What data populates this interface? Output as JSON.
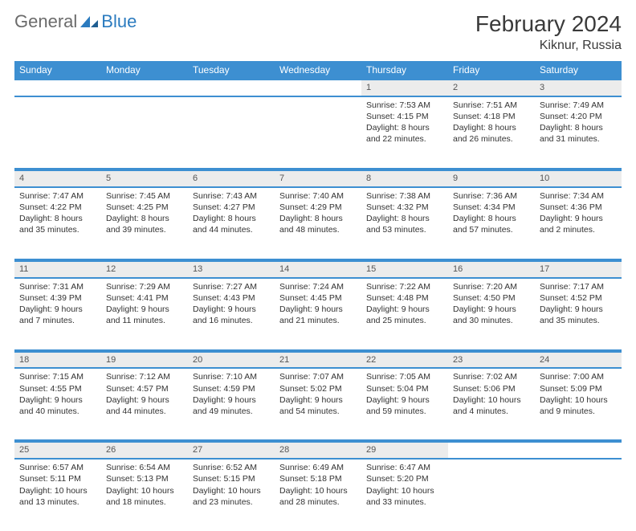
{
  "brand": {
    "general": "General",
    "blue": "Blue"
  },
  "title": "February 2024",
  "location": "Kiknur, Russia",
  "day_headers": [
    "Sunday",
    "Monday",
    "Tuesday",
    "Wednesday",
    "Thursday",
    "Friday",
    "Saturday"
  ],
  "colors": {
    "header_bg": "#3d8fd1",
    "header_text": "#ffffff",
    "daynum_bg": "#ececec",
    "rule": "#2b7bbf",
    "body_text": "#333333",
    "logo_gray": "#6b6b6b",
    "logo_blue": "#2b7bbf"
  },
  "weeks": [
    [
      null,
      null,
      null,
      null,
      {
        "n": "1",
        "sunrise": "7:53 AM",
        "sunset": "4:15 PM",
        "daylight": "8 hours and 22 minutes."
      },
      {
        "n": "2",
        "sunrise": "7:51 AM",
        "sunset": "4:18 PM",
        "daylight": "8 hours and 26 minutes."
      },
      {
        "n": "3",
        "sunrise": "7:49 AM",
        "sunset": "4:20 PM",
        "daylight": "8 hours and 31 minutes."
      }
    ],
    [
      {
        "n": "4",
        "sunrise": "7:47 AM",
        "sunset": "4:22 PM",
        "daylight": "8 hours and 35 minutes."
      },
      {
        "n": "5",
        "sunrise": "7:45 AM",
        "sunset": "4:25 PM",
        "daylight": "8 hours and 39 minutes."
      },
      {
        "n": "6",
        "sunrise": "7:43 AM",
        "sunset": "4:27 PM",
        "daylight": "8 hours and 44 minutes."
      },
      {
        "n": "7",
        "sunrise": "7:40 AM",
        "sunset": "4:29 PM",
        "daylight": "8 hours and 48 minutes."
      },
      {
        "n": "8",
        "sunrise": "7:38 AM",
        "sunset": "4:32 PM",
        "daylight": "8 hours and 53 minutes."
      },
      {
        "n": "9",
        "sunrise": "7:36 AM",
        "sunset": "4:34 PM",
        "daylight": "8 hours and 57 minutes."
      },
      {
        "n": "10",
        "sunrise": "7:34 AM",
        "sunset": "4:36 PM",
        "daylight": "9 hours and 2 minutes."
      }
    ],
    [
      {
        "n": "11",
        "sunrise": "7:31 AM",
        "sunset": "4:39 PM",
        "daylight": "9 hours and 7 minutes."
      },
      {
        "n": "12",
        "sunrise": "7:29 AM",
        "sunset": "4:41 PM",
        "daylight": "9 hours and 11 minutes."
      },
      {
        "n": "13",
        "sunrise": "7:27 AM",
        "sunset": "4:43 PM",
        "daylight": "9 hours and 16 minutes."
      },
      {
        "n": "14",
        "sunrise": "7:24 AM",
        "sunset": "4:45 PM",
        "daylight": "9 hours and 21 minutes."
      },
      {
        "n": "15",
        "sunrise": "7:22 AM",
        "sunset": "4:48 PM",
        "daylight": "9 hours and 25 minutes."
      },
      {
        "n": "16",
        "sunrise": "7:20 AM",
        "sunset": "4:50 PM",
        "daylight": "9 hours and 30 minutes."
      },
      {
        "n": "17",
        "sunrise": "7:17 AM",
        "sunset": "4:52 PM",
        "daylight": "9 hours and 35 minutes."
      }
    ],
    [
      {
        "n": "18",
        "sunrise": "7:15 AM",
        "sunset": "4:55 PM",
        "daylight": "9 hours and 40 minutes."
      },
      {
        "n": "19",
        "sunrise": "7:12 AM",
        "sunset": "4:57 PM",
        "daylight": "9 hours and 44 minutes."
      },
      {
        "n": "20",
        "sunrise": "7:10 AM",
        "sunset": "4:59 PM",
        "daylight": "9 hours and 49 minutes."
      },
      {
        "n": "21",
        "sunrise": "7:07 AM",
        "sunset": "5:02 PM",
        "daylight": "9 hours and 54 minutes."
      },
      {
        "n": "22",
        "sunrise": "7:05 AM",
        "sunset": "5:04 PM",
        "daylight": "9 hours and 59 minutes."
      },
      {
        "n": "23",
        "sunrise": "7:02 AM",
        "sunset": "5:06 PM",
        "daylight": "10 hours and 4 minutes."
      },
      {
        "n": "24",
        "sunrise": "7:00 AM",
        "sunset": "5:09 PM",
        "daylight": "10 hours and 9 minutes."
      }
    ],
    [
      {
        "n": "25",
        "sunrise": "6:57 AM",
        "sunset": "5:11 PM",
        "daylight": "10 hours and 13 minutes."
      },
      {
        "n": "26",
        "sunrise": "6:54 AM",
        "sunset": "5:13 PM",
        "daylight": "10 hours and 18 minutes."
      },
      {
        "n": "27",
        "sunrise": "6:52 AM",
        "sunset": "5:15 PM",
        "daylight": "10 hours and 23 minutes."
      },
      {
        "n": "28",
        "sunrise": "6:49 AM",
        "sunset": "5:18 PM",
        "daylight": "10 hours and 28 minutes."
      },
      {
        "n": "29",
        "sunrise": "6:47 AM",
        "sunset": "5:20 PM",
        "daylight": "10 hours and 33 minutes."
      },
      null,
      null
    ]
  ],
  "labels": {
    "sunrise": "Sunrise: ",
    "sunset": "Sunset: ",
    "daylight": "Daylight: "
  }
}
